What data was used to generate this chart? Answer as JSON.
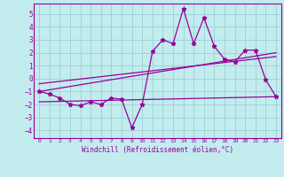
{
  "xlabel": "Windchill (Refroidissement éolien,°C)",
  "bg_color": "#c2ecee",
  "grid_color": "#a0d4d8",
  "line_color": "#990099",
  "xlim": [
    -0.5,
    23.5
  ],
  "ylim": [
    -4.6,
    5.8
  ],
  "xticks": [
    0,
    1,
    2,
    3,
    4,
    5,
    6,
    7,
    8,
    9,
    10,
    11,
    12,
    13,
    14,
    15,
    16,
    17,
    18,
    19,
    20,
    21,
    22,
    23
  ],
  "yticks": [
    -4,
    -3,
    -2,
    -1,
    0,
    1,
    2,
    3,
    4,
    5
  ],
  "data_x": [
    0,
    1,
    2,
    3,
    4,
    5,
    6,
    7,
    8,
    9,
    10,
    11,
    12,
    13,
    14,
    15,
    16,
    17,
    18,
    19,
    20,
    21,
    22,
    23
  ],
  "data_y": [
    -1.0,
    -1.2,
    -1.5,
    -2.0,
    -2.1,
    -1.8,
    -2.0,
    -1.5,
    -1.6,
    -3.8,
    -2.0,
    2.1,
    3.0,
    2.7,
    5.4,
    2.7,
    4.7,
    2.5,
    1.5,
    1.3,
    2.2,
    2.2,
    -0.1,
    -1.4
  ],
  "line1_x": [
    0,
    23
  ],
  "line1_y": [
    -1.0,
    2.0
  ],
  "line2_x": [
    0,
    23
  ],
  "line2_y": [
    -0.4,
    1.7
  ],
  "line3_x": [
    0,
    23
  ],
  "line3_y": [
    -1.8,
    -1.4
  ]
}
